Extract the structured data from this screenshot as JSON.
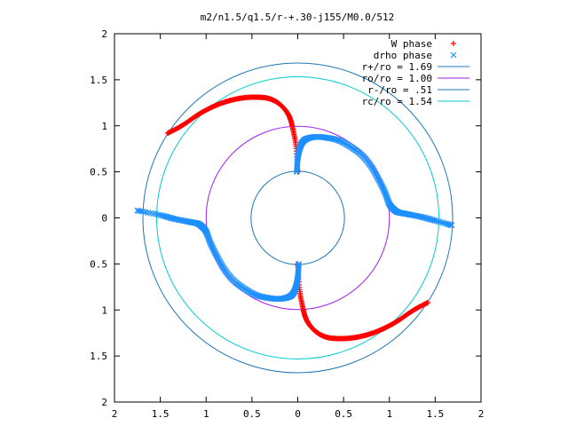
{
  "chart_data": {
    "type": "scatter",
    "title": "m2/n1.5/q1.5/r-+.30-j155/M0.0/512",
    "xlabel": "",
    "ylabel": "",
    "xlim": [
      -2,
      2
    ],
    "ylim": [
      -2,
      2
    ],
    "grid": false,
    "legend_position": "top-right",
    "x_ticks": [
      -2,
      -1.5,
      -1,
      -0.5,
      0,
      0.5,
      1,
      1.5,
      2
    ],
    "y_ticks": [
      -2,
      -1.5,
      -1,
      -0.5,
      0,
      0.5,
      1,
      1.5,
      2
    ],
    "x_tick_labels": [
      "2",
      "1.5",
      "1",
      "0.5",
      "0",
      "0.5",
      "1",
      "1.5",
      "2"
    ],
    "y_tick_labels": [
      "2",
      "1.5",
      "1",
      "0.5",
      "0",
      "0.5",
      "1",
      "1.5",
      "2"
    ],
    "series": [
      {
        "name": "W phase",
        "kind": "points",
        "marker": "plus",
        "color": "#ff0000",
        "arms": [
          {
            "x": [
              0.0,
              -0.02,
              -0.05,
              -0.08,
              -0.12,
              -0.18,
              -0.25,
              -0.33,
              -0.42,
              -0.52,
              -0.62,
              -0.72,
              -0.82,
              -0.92,
              -1.02,
              -1.12,
              -1.22,
              -1.32,
              -1.42
            ],
            "y": [
              0.5,
              0.78,
              0.95,
              1.07,
              1.15,
              1.22,
              1.27,
              1.3,
              1.31,
              1.31,
              1.3,
              1.28,
              1.25,
              1.21,
              1.16,
              1.1,
              1.03,
              0.97,
              0.92
            ]
          },
          {
            "x": [
              0.0,
              0.02,
              0.05,
              0.08,
              0.12,
              0.18,
              0.25,
              0.33,
              0.42,
              0.52,
              0.62,
              0.72,
              0.82,
              0.92,
              1.02,
              1.12,
              1.22,
              1.32,
              1.42
            ],
            "y": [
              -0.5,
              -0.78,
              -0.95,
              -1.07,
              -1.15,
              -1.22,
              -1.27,
              -1.3,
              -1.31,
              -1.31,
              -1.3,
              -1.28,
              -1.25,
              -1.21,
              -1.16,
              -1.1,
              -1.03,
              -0.97,
              -0.92
            ]
          }
        ]
      },
      {
        "name": "drho phase",
        "kind": "points",
        "marker": "cross",
        "color": "#1e90ff",
        "arms": [
          {
            "x": [
              -0.01,
              0.0,
              0.02,
              0.05,
              0.1,
              0.2,
              0.32,
              0.45,
              0.58,
              0.7,
              0.8,
              0.88,
              0.95,
              1.0,
              1.05,
              1.1,
              1.2,
              1.35,
              1.5,
              1.68
            ],
            "y": [
              0.5,
              0.65,
              0.75,
              0.82,
              0.86,
              0.88,
              0.87,
              0.84,
              0.77,
              0.68,
              0.56,
              0.42,
              0.28,
              0.15,
              0.09,
              0.06,
              0.04,
              0.01,
              -0.03,
              -0.08
            ]
          },
          {
            "x": [
              0.01,
              0.0,
              -0.02,
              -0.05,
              -0.1,
              -0.2,
              -0.32,
              -0.45,
              -0.58,
              -0.7,
              -0.8,
              -0.88,
              -0.95,
              -1.0,
              -1.05,
              -1.1,
              -1.2,
              -1.35,
              -1.5,
              -1.75
            ],
            "y": [
              -0.5,
              -0.65,
              -0.75,
              -0.82,
              -0.86,
              -0.88,
              -0.87,
              -0.84,
              -0.77,
              -0.68,
              -0.56,
              -0.42,
              -0.28,
              -0.15,
              -0.09,
              -0.06,
              -0.04,
              -0.01,
              0.03,
              0.08
            ]
          }
        ]
      },
      {
        "name": "r+/ro = 1.69",
        "kind": "circle",
        "radius": 1.69,
        "color": "#1f77b4"
      },
      {
        "name": "ro/ro = 1.00",
        "kind": "circle",
        "radius": 1.0,
        "color": "#a020f0"
      },
      {
        "name": "r-/ro = .51",
        "kind": "circle",
        "radius": 0.51,
        "color": "#1f77b4"
      },
      {
        "name": "rc/ro = 1.54",
        "kind": "circle",
        "radius": 1.54,
        "color": "#00cccc"
      }
    ]
  }
}
